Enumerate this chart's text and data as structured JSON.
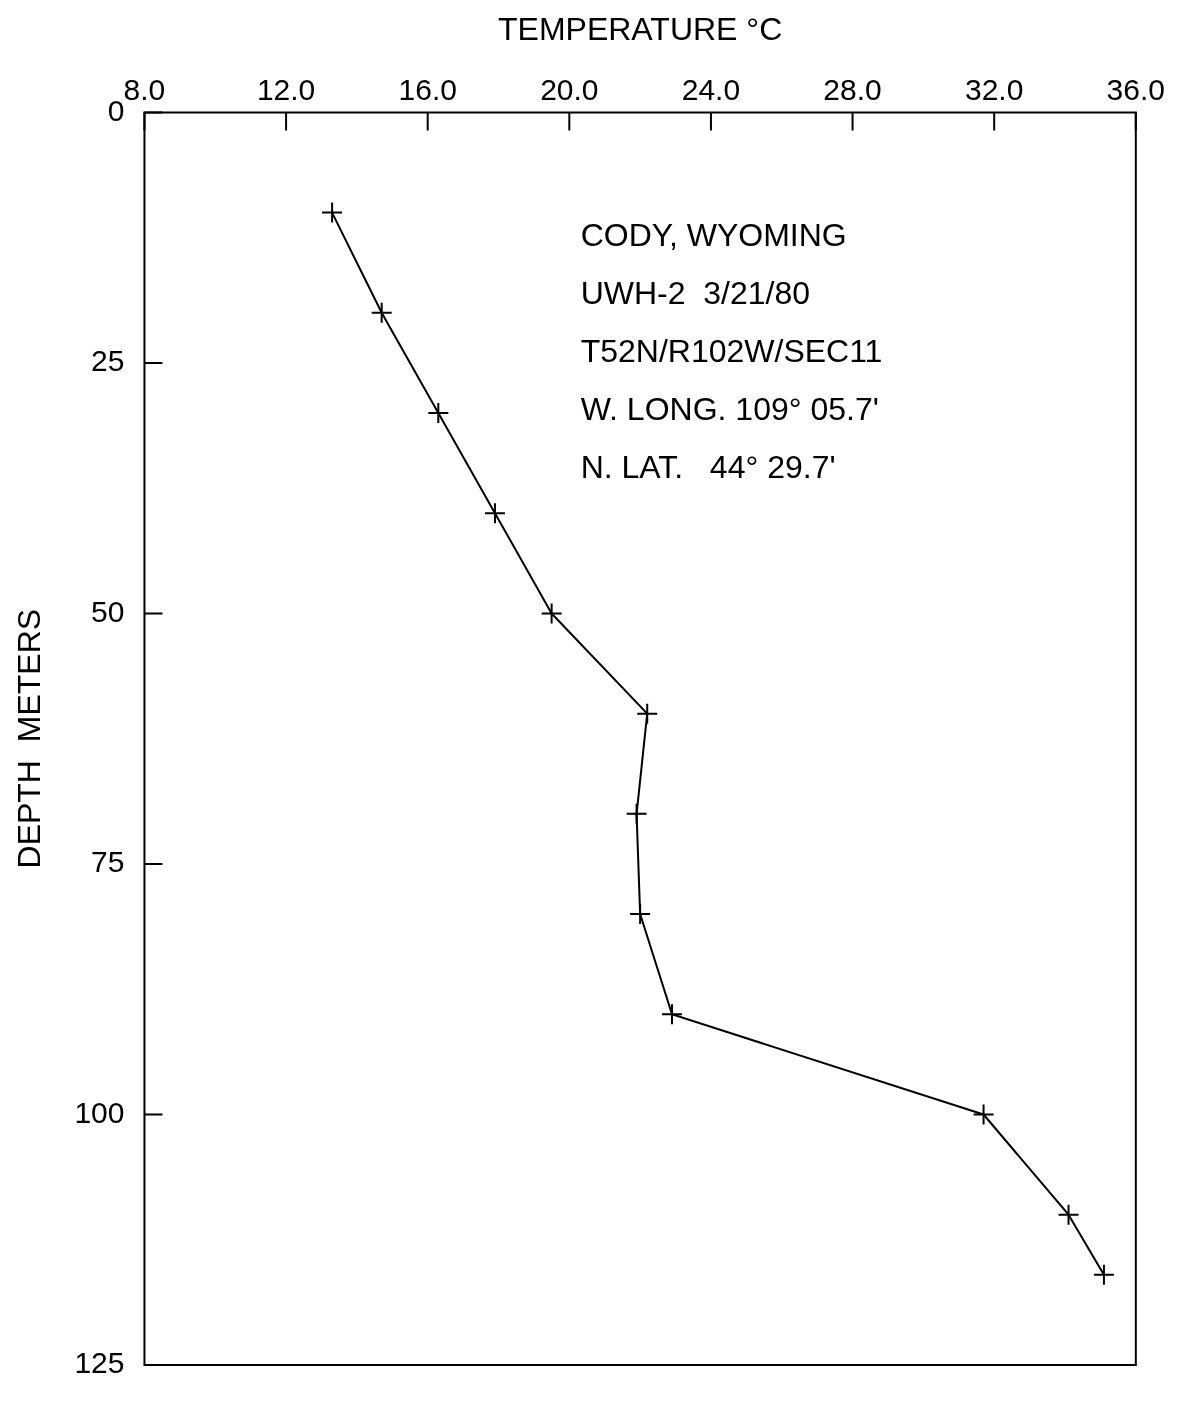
{
  "chart_data": {
    "type": "line",
    "xlabel": "TEMPERATURE °C",
    "ylabel": "DEPTH  METERS",
    "annotations": [
      "CODY, WYOMING",
      "UWH-2  3/21/80",
      "T52N/R102W/SEC11",
      "W. LONG. 109° 05.7'",
      "N. LAT.   44° 29.7'"
    ],
    "xlim": [
      8,
      36
    ],
    "xticks": [
      {
        "value": 8,
        "label": "8.0"
      },
      {
        "value": 12,
        "label": "12.0"
      },
      {
        "value": 16,
        "label": "16.0"
      },
      {
        "value": 20,
        "label": "20.0"
      },
      {
        "value": 24,
        "label": "24.0"
      },
      {
        "value": 28,
        "label": "28.0"
      },
      {
        "value": 32,
        "label": "32.0"
      },
      {
        "value": 36,
        "label": "36.0"
      }
    ],
    "ylim": [
      125,
      0
    ],
    "yticks": [
      0,
      25,
      50,
      75,
      100,
      125
    ],
    "marker": "cross",
    "line_style": "solid",
    "series": [
      {
        "color": "#000000",
        "x": [
          13.3,
          14.7,
          16.3,
          17.9,
          19.5,
          22.2,
          21.9,
          22.0,
          22.9,
          31.7,
          34.1,
          35.1
        ],
        "values": [
          10,
          20,
          30,
          40,
          50,
          60,
          70,
          80,
          90,
          100,
          110,
          116
        ]
      }
    ]
  }
}
